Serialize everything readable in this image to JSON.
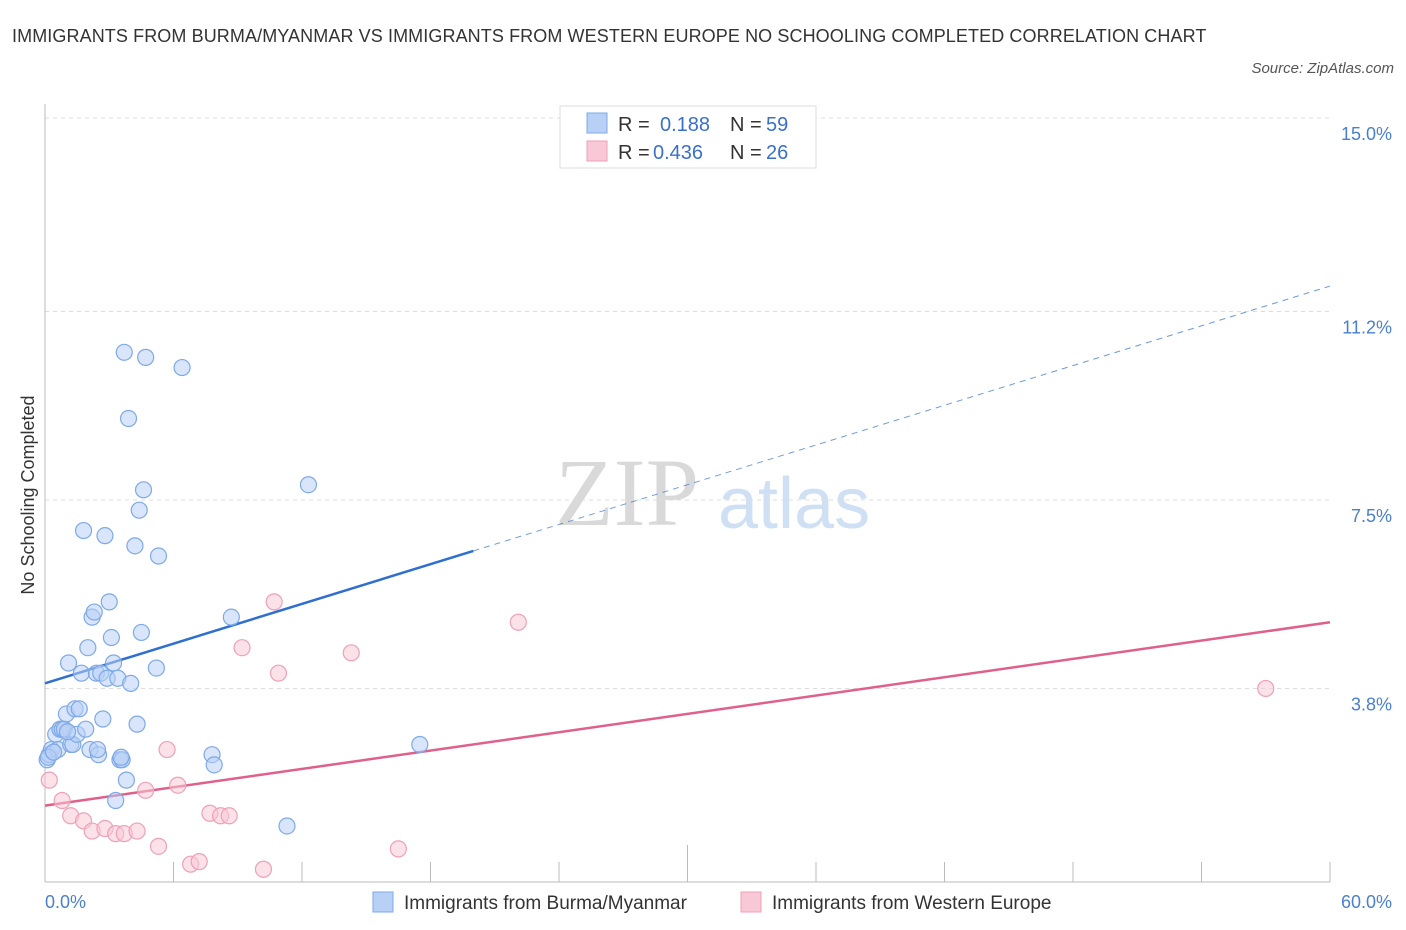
{
  "chart_data": {
    "type": "scatter",
    "title": "IMMIGRANTS FROM BURMA/MYANMAR VS IMMIGRANTS FROM WESTERN EUROPE NO SCHOOLING COMPLETED CORRELATION CHART",
    "source": "Source: ZipAtlas.com",
    "ylabel": "No Schooling Completed",
    "xlim": [
      0,
      60
    ],
    "ylim": [
      0,
      15
    ],
    "x_tick_labels": [
      "0.0%",
      "60.0%"
    ],
    "y_ticks": [
      3.8,
      7.5,
      11.2,
      15.0
    ],
    "y_tick_labels": [
      "3.8%",
      "7.5%",
      "11.2%",
      "15.0%"
    ],
    "watermark": {
      "zip": "ZIP",
      "atlas": "atlas"
    },
    "legend": {
      "r_label": "R =",
      "n_label": "N =",
      "entries": [
        {
          "r": "0.188",
          "n": "59"
        },
        {
          "r": "0.436",
          "n": "26"
        }
      ]
    },
    "series": [
      {
        "name": "Immigrants from Burma/Myanmar",
        "color": "#7ea9e8",
        "fill": "#b8d0f5",
        "line_color": "#2f6fd0",
        "trend": {
          "x0": 0,
          "y0": 3.9,
          "x1": 20,
          "y1": 6.5,
          "extend_to": 60,
          "extend_y": 11.7
        },
        "points": [
          [
            0.1,
            2.4
          ],
          [
            0.2,
            2.5
          ],
          [
            0.3,
            2.6
          ],
          [
            0.5,
            2.9
          ],
          [
            0.6,
            2.6
          ],
          [
            0.7,
            3.0
          ],
          [
            0.8,
            3.0
          ],
          [
            0.9,
            3.0
          ],
          [
            1.0,
            3.3
          ],
          [
            1.1,
            4.3
          ],
          [
            1.2,
            2.7
          ],
          [
            1.3,
            2.7
          ],
          [
            1.4,
            3.4
          ],
          [
            1.5,
            2.9
          ],
          [
            1.6,
            3.4
          ],
          [
            1.7,
            4.1
          ],
          [
            1.8,
            6.9
          ],
          [
            1.9,
            3.0
          ],
          [
            2.0,
            4.6
          ],
          [
            2.1,
            2.6
          ],
          [
            2.2,
            5.2
          ],
          [
            2.3,
            5.3
          ],
          [
            2.4,
            4.1
          ],
          [
            2.5,
            2.5
          ],
          [
            2.6,
            4.1
          ],
          [
            2.7,
            3.2
          ],
          [
            2.8,
            6.8
          ],
          [
            2.9,
            4.0
          ],
          [
            3.0,
            5.5
          ],
          [
            3.1,
            4.8
          ],
          [
            3.2,
            4.3
          ],
          [
            3.3,
            1.6
          ],
          [
            3.4,
            4.0
          ],
          [
            3.5,
            2.4
          ],
          [
            3.6,
            2.4
          ],
          [
            3.7,
            10.4
          ],
          [
            3.8,
            2.0
          ],
          [
            3.9,
            9.1
          ],
          [
            4.0,
            3.9
          ],
          [
            4.2,
            6.6
          ],
          [
            4.3,
            3.1
          ],
          [
            4.4,
            7.3
          ],
          [
            4.5,
            4.9
          ],
          [
            4.6,
            7.7
          ],
          [
            4.7,
            10.3
          ],
          [
            5.2,
            4.2
          ],
          [
            5.3,
            6.4
          ],
          [
            6.4,
            10.1
          ],
          [
            7.8,
            2.5
          ],
          [
            7.9,
            2.3
          ],
          [
            8.7,
            5.2
          ],
          [
            11.3,
            1.1
          ],
          [
            12.3,
            7.8
          ],
          [
            17.5,
            2.7
          ],
          [
            0.15,
            2.45
          ],
          [
            0.4,
            2.55
          ],
          [
            1.05,
            2.95
          ],
          [
            2.45,
            2.6
          ],
          [
            3.55,
            2.45
          ]
        ]
      },
      {
        "name": "Immigrants from Western Europe",
        "color": "#f0a0b8",
        "fill": "#f8c8d6",
        "line_color": "#e0608a",
        "trend": {
          "x0": 0,
          "y0": 1.5,
          "x1": 60,
          "y1": 5.1
        },
        "points": [
          [
            0.2,
            2.0
          ],
          [
            0.8,
            1.6
          ],
          [
            1.2,
            1.3
          ],
          [
            1.8,
            1.2
          ],
          [
            2.2,
            1.0
          ],
          [
            2.8,
            1.05
          ],
          [
            3.3,
            0.95
          ],
          [
            3.7,
            0.95
          ],
          [
            4.3,
            1.0
          ],
          [
            4.7,
            1.8
          ],
          [
            5.3,
            0.7
          ],
          [
            5.7,
            2.6
          ],
          [
            6.2,
            1.9
          ],
          [
            6.8,
            0.35
          ],
          [
            7.2,
            0.4
          ],
          [
            7.7,
            1.35
          ],
          [
            8.2,
            1.3
          ],
          [
            8.6,
            1.3
          ],
          [
            9.2,
            4.6
          ],
          [
            10.2,
            0.25
          ],
          [
            10.7,
            5.5
          ],
          [
            10.9,
            4.1
          ],
          [
            14.3,
            4.5
          ],
          [
            16.5,
            0.65
          ],
          [
            22.1,
            5.1
          ],
          [
            57.0,
            3.8
          ]
        ]
      }
    ]
  }
}
